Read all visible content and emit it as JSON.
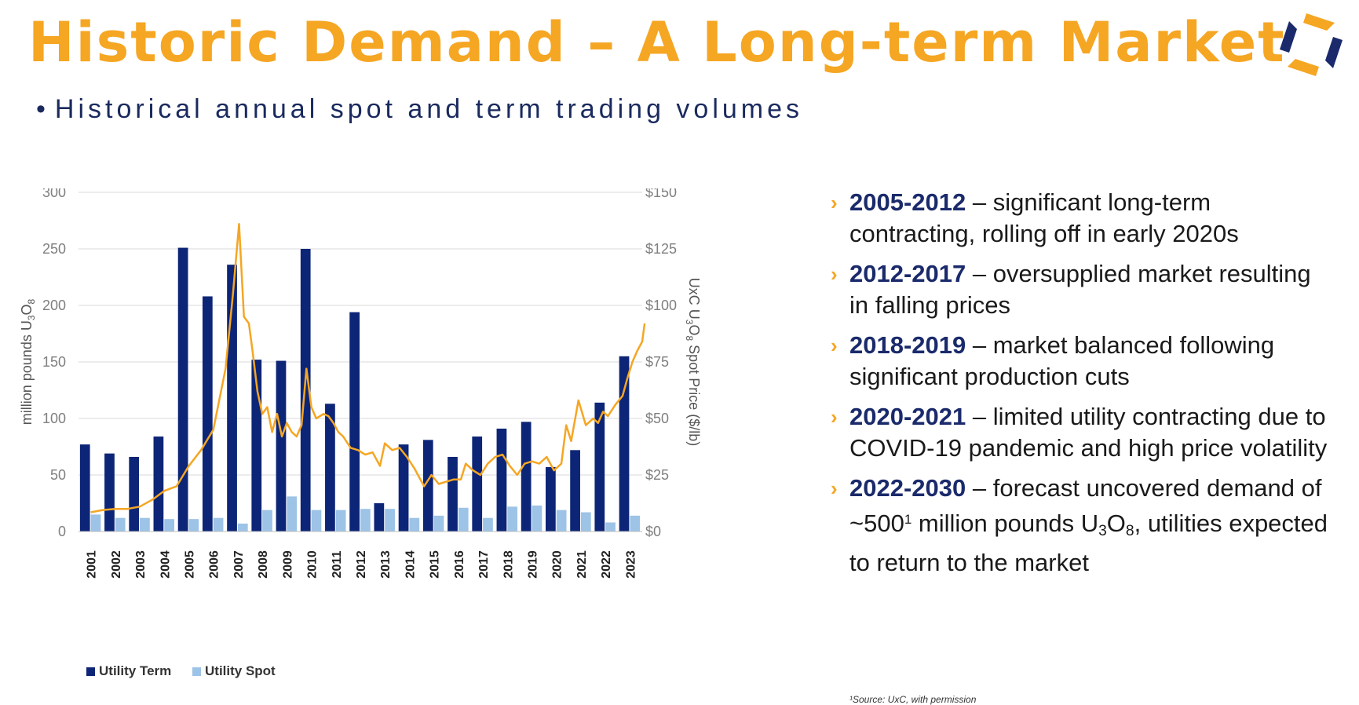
{
  "title": "Historic Demand – A Long-term Market",
  "subtitle": "Historical annual spot and term trading volumes",
  "chart_data": {
    "type": "bar",
    "categories": [
      "2001",
      "2002",
      "2003",
      "2004",
      "2005",
      "2006",
      "2007",
      "2008",
      "2009",
      "2010",
      "2011",
      "2012",
      "2013",
      "2014",
      "2015",
      "2016",
      "2017",
      "2018",
      "2019",
      "2020",
      "2021",
      "2022",
      "2023"
    ],
    "series": [
      {
        "name": "Utility Term",
        "color": "#0d2577",
        "values": [
          77,
          69,
          66,
          84,
          251,
          208,
          236,
          152,
          151,
          250,
          113,
          194,
          25,
          77,
          81,
          66,
          84,
          91,
          97,
          57,
          72,
          114,
          155
        ]
      },
      {
        "name": "Utility Spot",
        "color": "#9dc3e6",
        "values": [
          15,
          12,
          12,
          11,
          11,
          12,
          7,
          19,
          31,
          19,
          19,
          20,
          20,
          12,
          14,
          21,
          12,
          22,
          23,
          19,
          17,
          8,
          14
        ]
      }
    ],
    "line": {
      "name": "UxC U3O8 Spot Price",
      "color": "#f5a623",
      "x": [
        2001.0,
        2001.5,
        2002.0,
        2002.5,
        2003.0,
        2003.5,
        2004.0,
        2004.5,
        2005.0,
        2005.5,
        2006.0,
        2006.5,
        2006.8,
        2007.05,
        2007.25,
        2007.45,
        2007.6,
        2007.8,
        2008.0,
        2008.2,
        2008.4,
        2008.6,
        2008.8,
        2009.0,
        2009.2,
        2009.4,
        2009.6,
        2009.8,
        2010.0,
        2010.2,
        2010.5,
        2010.7,
        2010.9,
        2011.1,
        2011.3,
        2011.6,
        2011.9,
        2012.2,
        2012.5,
        2012.8,
        2013.0,
        2013.3,
        2013.6,
        2013.9,
        2014.2,
        2014.4,
        2014.6,
        2014.9,
        2015.2,
        2015.5,
        2015.8,
        2016.1,
        2016.3,
        2016.6,
        2016.9,
        2017.2,
        2017.5,
        2017.8,
        2018.1,
        2018.4,
        2018.7,
        2019.0,
        2019.3,
        2019.6,
        2019.9,
        2020.2,
        2020.4,
        2020.6,
        2020.9,
        2021.2,
        2021.5,
        2021.7,
        2021.9,
        2022.1,
        2022.4,
        2022.7,
        2022.9,
        2023.1,
        2023.3,
        2023.5,
        2023.6
      ],
      "y": [
        8.5,
        9.5,
        10,
        10,
        11,
        14,
        18,
        20,
        29,
        36,
        45,
        72,
        105,
        136,
        95,
        92,
        80,
        62,
        52,
        55,
        44,
        52,
        42,
        48,
        44,
        42,
        47,
        72,
        55,
        50,
        52,
        51,
        48,
        44,
        42,
        37,
        36,
        34,
        35,
        29,
        39,
        36,
        37,
        33,
        28,
        24,
        20,
        25,
        21,
        22,
        23,
        23,
        30,
        27,
        25,
        30,
        33,
        34,
        29,
        25,
        30,
        31,
        30,
        33,
        27,
        30,
        47,
        40,
        58,
        47,
        50,
        48,
        53,
        51,
        56,
        60,
        68,
        75,
        80,
        84,
        92
      ]
    },
    "ylabel": "million pounds U3O8",
    "ylabel_right": "UxC U3O8 Spot Price ($/lb)",
    "ylim": [
      0,
      300
    ],
    "yticks": [
      "0",
      "50",
      "100",
      "150",
      "200",
      "250",
      "300"
    ],
    "y2lim": [
      0,
      150
    ],
    "y2ticks": [
      "$0",
      "$25",
      "$50",
      "$75",
      "$100",
      "$125",
      "$150"
    ],
    "grid": true,
    "legend": "bottom-left"
  },
  "notes": [
    {
      "years": "2005-2012",
      "text": " – significant long-term contracting, rolling off in early 2020s"
    },
    {
      "years": "2012-2017",
      "text": " – oversupplied market resulting in falling prices"
    },
    {
      "years": "2018-2019",
      "text": " – market balanced following significant production cuts"
    },
    {
      "years": "2020-2021",
      "text": " – limited utility contracting due to COVID-19 pandemic and high price volatility"
    },
    {
      "years": "2022-2030",
      "text_before": " – forecast uncovered demand of ~500",
      "sup": "1",
      "text_mid": " million pounds U",
      "sub1": "3",
      "o": "O",
      "sub2": "8",
      "text_after": ", utilities expected to return to the market"
    }
  ],
  "source": "¹Source: UxC, with permission",
  "colors": {
    "accent": "#f5a623",
    "navy": "#0d2577",
    "light_blue": "#9dc3e6"
  }
}
